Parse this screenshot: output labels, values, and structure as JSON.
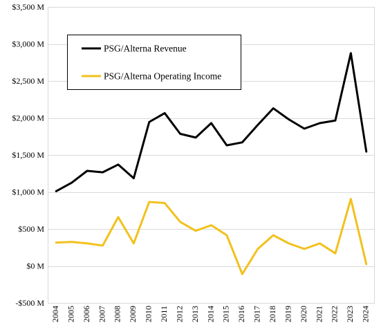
{
  "chart_data": {
    "type": "line",
    "title": "",
    "xlabel": "",
    "ylabel": "",
    "x": [
      "2004",
      "2005",
      "2006",
      "2007",
      "2008",
      "2009",
      "2010",
      "2011",
      "2012",
      "2013",
      "2014",
      "2015",
      "2016",
      "2017",
      "2018",
      "2019",
      "2020",
      "2021",
      "2022",
      "2023",
      "2024"
    ],
    "ylim": [
      -500,
      3500
    ],
    "yticks": [
      -500,
      0,
      500,
      1000,
      1500,
      2000,
      2500,
      3000,
      3500
    ],
    "ytick_labels": [
      "-$500 M",
      "$0 M",
      "$500 M",
      "$1,000 M",
      "$1,500 M",
      "$2,000 M",
      "$2,500 M",
      "$3,000 M",
      "$3,500 M"
    ],
    "grid": true,
    "legend_position": "top-left",
    "series": [
      {
        "name": "PSG/Alterna Revenue",
        "color": "#000000",
        "values": [
          1010,
          1125,
          1285,
          1265,
          1370,
          1185,
          1945,
          2065,
          1785,
          1735,
          1930,
          1630,
          1670,
          1905,
          2130,
          1980,
          1855,
          1930,
          1965,
          2875,
          1545
        ]
      },
      {
        "name": "PSG/Alterna Operating Income",
        "color": "#F2C11C",
        "values": [
          315,
          325,
          305,
          275,
          660,
          305,
          865,
          850,
          595,
          475,
          550,
          415,
          -110,
          230,
          415,
          305,
          230,
          305,
          170,
          905,
          25
        ]
      }
    ]
  }
}
